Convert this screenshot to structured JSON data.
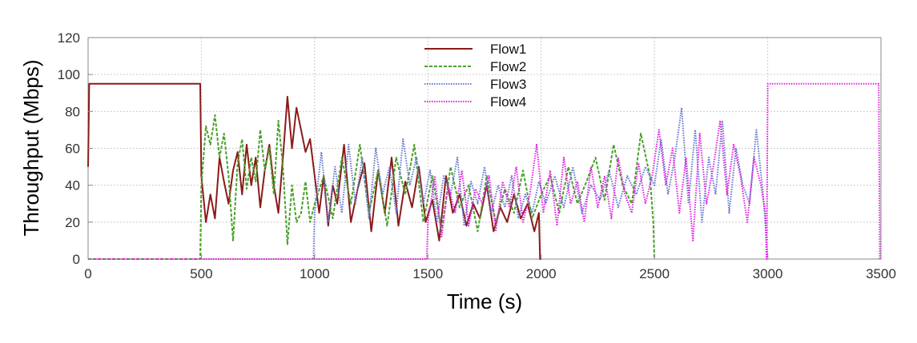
{
  "chart_data": {
    "type": "line",
    "title": "",
    "xlabel": "Time (s)",
    "ylabel": "Throughput (Mbps)",
    "xlim": [
      0,
      3500
    ],
    "ylim": [
      0,
      120
    ],
    "xticks": [
      "0",
      "500",
      "1000",
      "1500",
      "2000",
      "2500",
      "3000",
      "3500"
    ],
    "yticks": [
      "0",
      "20",
      "40",
      "60",
      "80",
      "100",
      "120"
    ],
    "grid": true,
    "legend_position": "top-center",
    "series": [
      {
        "name": "Flow1",
        "color": "#8b1a1a",
        "style": "solid",
        "x": [
          0,
          5,
          10,
          490,
          495,
          500,
          520,
          540,
          560,
          580,
          600,
          620,
          640,
          660,
          680,
          700,
          720,
          740,
          760,
          780,
          800,
          820,
          840,
          860,
          880,
          900,
          920,
          940,
          960,
          980,
          1000,
          1020,
          1040,
          1060,
          1080,
          1100,
          1130,
          1160,
          1190,
          1220,
          1250,
          1280,
          1310,
          1340,
          1370,
          1400,
          1430,
          1460,
          1490,
          1520,
          1550,
          1580,
          1610,
          1640,
          1670,
          1700,
          1730,
          1760,
          1790,
          1820,
          1850,
          1880,
          1910,
          1940,
          1970,
          1990,
          1995,
          2000
        ],
        "y": [
          50,
          95,
          95,
          95,
          95,
          45,
          20,
          35,
          22,
          55,
          42,
          30,
          48,
          58,
          35,
          62,
          40,
          55,
          28,
          48,
          62,
          40,
          25,
          55,
          88,
          60,
          82,
          70,
          58,
          65,
          45,
          25,
          45,
          18,
          40,
          30,
          62,
          20,
          38,
          52,
          15,
          48,
          25,
          55,
          18,
          42,
          28,
          50,
          20,
          32,
          10,
          45,
          25,
          35,
          18,
          30,
          22,
          40,
          15,
          28,
          20,
          35,
          22,
          30,
          15,
          25,
          0,
          0
        ]
      },
      {
        "name": "Flow2",
        "color": "#4aa02c",
        "style": "dashed",
        "x": [
          0,
          490,
          495,
          500,
          520,
          540,
          560,
          580,
          600,
          620,
          640,
          660,
          680,
          700,
          720,
          740,
          760,
          780,
          800,
          820,
          840,
          860,
          880,
          900,
          920,
          940,
          960,
          980,
          1000,
          1040,
          1080,
          1120,
          1160,
          1200,
          1240,
          1280,
          1320,
          1360,
          1400,
          1440,
          1480,
          1520,
          1560,
          1600,
          1640,
          1680,
          1720,
          1760,
          1800,
          1840,
          1880,
          1920,
          1960,
          2000,
          2040,
          2080,
          2120,
          2160,
          2200,
          2240,
          2280,
          2320,
          2360,
          2400,
          2440,
          2480,
          2495,
          2500
        ],
        "y": [
          0,
          0,
          0,
          40,
          72,
          62,
          78,
          55,
          68,
          45,
          10,
          52,
          65,
          38,
          55,
          42,
          70,
          48,
          60,
          35,
          75,
          50,
          8,
          40,
          20,
          25,
          42,
          20,
          30,
          45,
          22,
          55,
          30,
          62,
          25,
          48,
          18,
          55,
          35,
          62,
          20,
          45,
          15,
          50,
          28,
          40,
          15,
          45,
          20,
          38,
          25,
          48,
          22,
          35,
          45,
          25,
          50,
          30,
          42,
          55,
          32,
          62,
          40,
          30,
          68,
          45,
          20,
          0
        ]
      },
      {
        "name": "Flow3",
        "color": "#6677cc",
        "style": "dotted",
        "x": [
          0,
          990,
          995,
          1000,
          1030,
          1060,
          1090,
          1120,
          1150,
          1180,
          1210,
          1240,
          1270,
          1300,
          1330,
          1360,
          1390,
          1420,
          1450,
          1480,
          1510,
          1540,
          1570,
          1600,
          1630,
          1660,
          1690,
          1720,
          1750,
          1780,
          1810,
          1840,
          1870,
          1900,
          1930,
          1960,
          1990,
          2020,
          2060,
          2100,
          2140,
          2180,
          2220,
          2260,
          2300,
          2340,
          2380,
          2420,
          2460,
          2500,
          2530,
          2560,
          2590,
          2620,
          2650,
          2680,
          2710,
          2740,
          2770,
          2800,
          2830,
          2860,
          2890,
          2920,
          2950,
          2980,
          2995,
          3000
        ],
        "y": [
          0,
          0,
          0,
          25,
          58,
          20,
          50,
          25,
          62,
          30,
          55,
          22,
          60,
          35,
          50,
          25,
          65,
          40,
          55,
          30,
          48,
          20,
          45,
          35,
          55,
          18,
          42,
          30,
          50,
          25,
          40,
          28,
          45,
          22,
          35,
          25,
          42,
          30,
          45,
          28,
          50,
          25,
          40,
          32,
          48,
          28,
          45,
          35,
          50,
          40,
          65,
          35,
          55,
          82,
          30,
          70,
          20,
          55,
          35,
          75,
          25,
          60,
          40,
          30,
          70,
          35,
          10,
          0
        ]
      },
      {
        "name": "Flow4",
        "color": "#e020e0",
        "style": "dotted",
        "x": [
          0,
          1490,
          1495,
          1500,
          1530,
          1560,
          1590,
          1620,
          1650,
          1680,
          1710,
          1740,
          1770,
          1800,
          1830,
          1860,
          1890,
          1920,
          1950,
          1980,
          2010,
          2040,
          2070,
          2100,
          2130,
          2160,
          2190,
          2220,
          2250,
          2280,
          2310,
          2340,
          2370,
          2400,
          2430,
          2460,
          2490,
          2520,
          2550,
          2580,
          2610,
          2640,
          2670,
          2700,
          2730,
          2760,
          2790,
          2820,
          2850,
          2880,
          2910,
          2940,
          2970,
          2990,
          2995,
          3000,
          3010,
          3100,
          3200,
          3300,
          3400,
          3490,
          3495,
          3500
        ],
        "y": [
          0,
          0,
          0,
          20,
          45,
          12,
          40,
          25,
          48,
          18,
          38,
          30,
          45,
          15,
          42,
          28,
          50,
          20,
          35,
          62,
          25,
          48,
          18,
          55,
          30,
          42,
          20,
          50,
          28,
          45,
          22,
          55,
          35,
          25,
          52,
          30,
          45,
          70,
          40,
          60,
          25,
          55,
          10,
          68,
          30,
          50,
          75,
          35,
          62,
          45,
          20,
          55,
          40,
          25,
          0,
          95,
          95,
          95,
          95,
          95,
          95,
          95,
          0,
          0
        ]
      }
    ]
  }
}
